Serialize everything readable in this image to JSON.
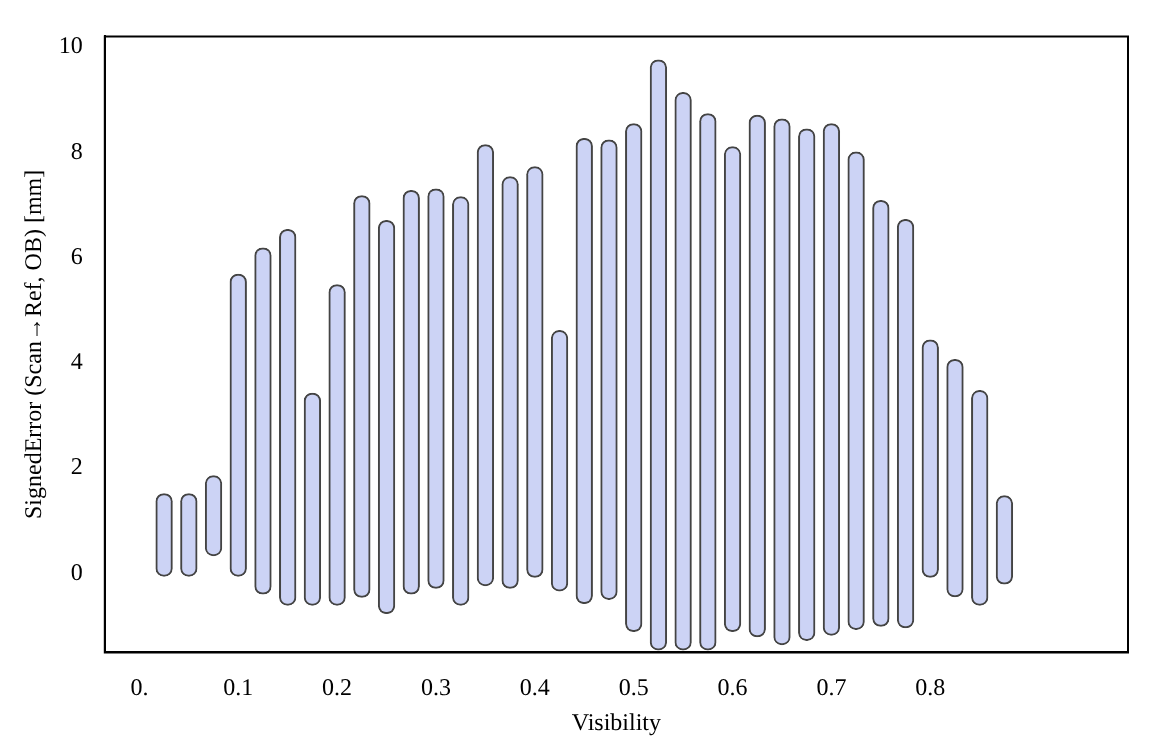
{
  "chart_data": {
    "type": "bar",
    "xlabel": "Visibility",
    "ylabel": "SignedError (Scan→Ref, OB) [mm]",
    "x": [
      0.025,
      0.05,
      0.075,
      0.1,
      0.125,
      0.15,
      0.175,
      0.2,
      0.225,
      0.25,
      0.275,
      0.3,
      0.325,
      0.35,
      0.375,
      0.4,
      0.425,
      0.45,
      0.475,
      0.5,
      0.525,
      0.55,
      0.575,
      0.6,
      0.625,
      0.65,
      0.675,
      0.7,
      0.725,
      0.75,
      0.775,
      0.8,
      0.825,
      0.85,
      0.875
    ],
    "base": [
      -0.05,
      -0.05,
      0.34,
      -0.05,
      -0.39,
      -0.6,
      -0.6,
      -0.6,
      -0.45,
      -0.76,
      -0.39,
      -0.28,
      -0.6,
      -0.23,
      -0.28,
      -0.07,
      -0.33,
      -0.57,
      -0.49,
      -1.1,
      -1.45,
      -1.45,
      -1.45,
      -1.1,
      -1.2,
      -1.35,
      -1.27,
      -1.17,
      -1.06,
      -1.0,
      -1.03,
      -0.07,
      -0.44,
      -0.6,
      -0.2
    ],
    "values": [
      1.56,
      1.56,
      1.51,
      5.73,
      6.57,
      7.13,
      4.02,
      6.08,
      7.62,
      7.46,
      7.66,
      7.58,
      7.75,
      8.37,
      7.81,
      7.79,
      4.94,
      8.83,
      8.72,
      9.64,
      11.2,
      10.58,
      10.18,
      9.2,
      9.9,
      9.98,
      9.71,
      9.71,
      9.06,
      8.08,
      7.75,
      4.5,
      4.5,
      4.07,
      1.67
    ],
    "color": "#ccd3f5",
    "xlim": [
      -0.035,
      1.0
    ],
    "xticks": [
      {
        "value": 0,
        "label": "0."
      },
      0.1,
      0.2,
      0.3,
      0.4,
      0.5,
      0.6,
      0.7,
      0.8
    ],
    "ylim": [
      -1.5,
      10.2
    ],
    "yticks": [
      0,
      2,
      4,
      6,
      8,
      10
    ],
    "grid": false,
    "legend": false
  }
}
